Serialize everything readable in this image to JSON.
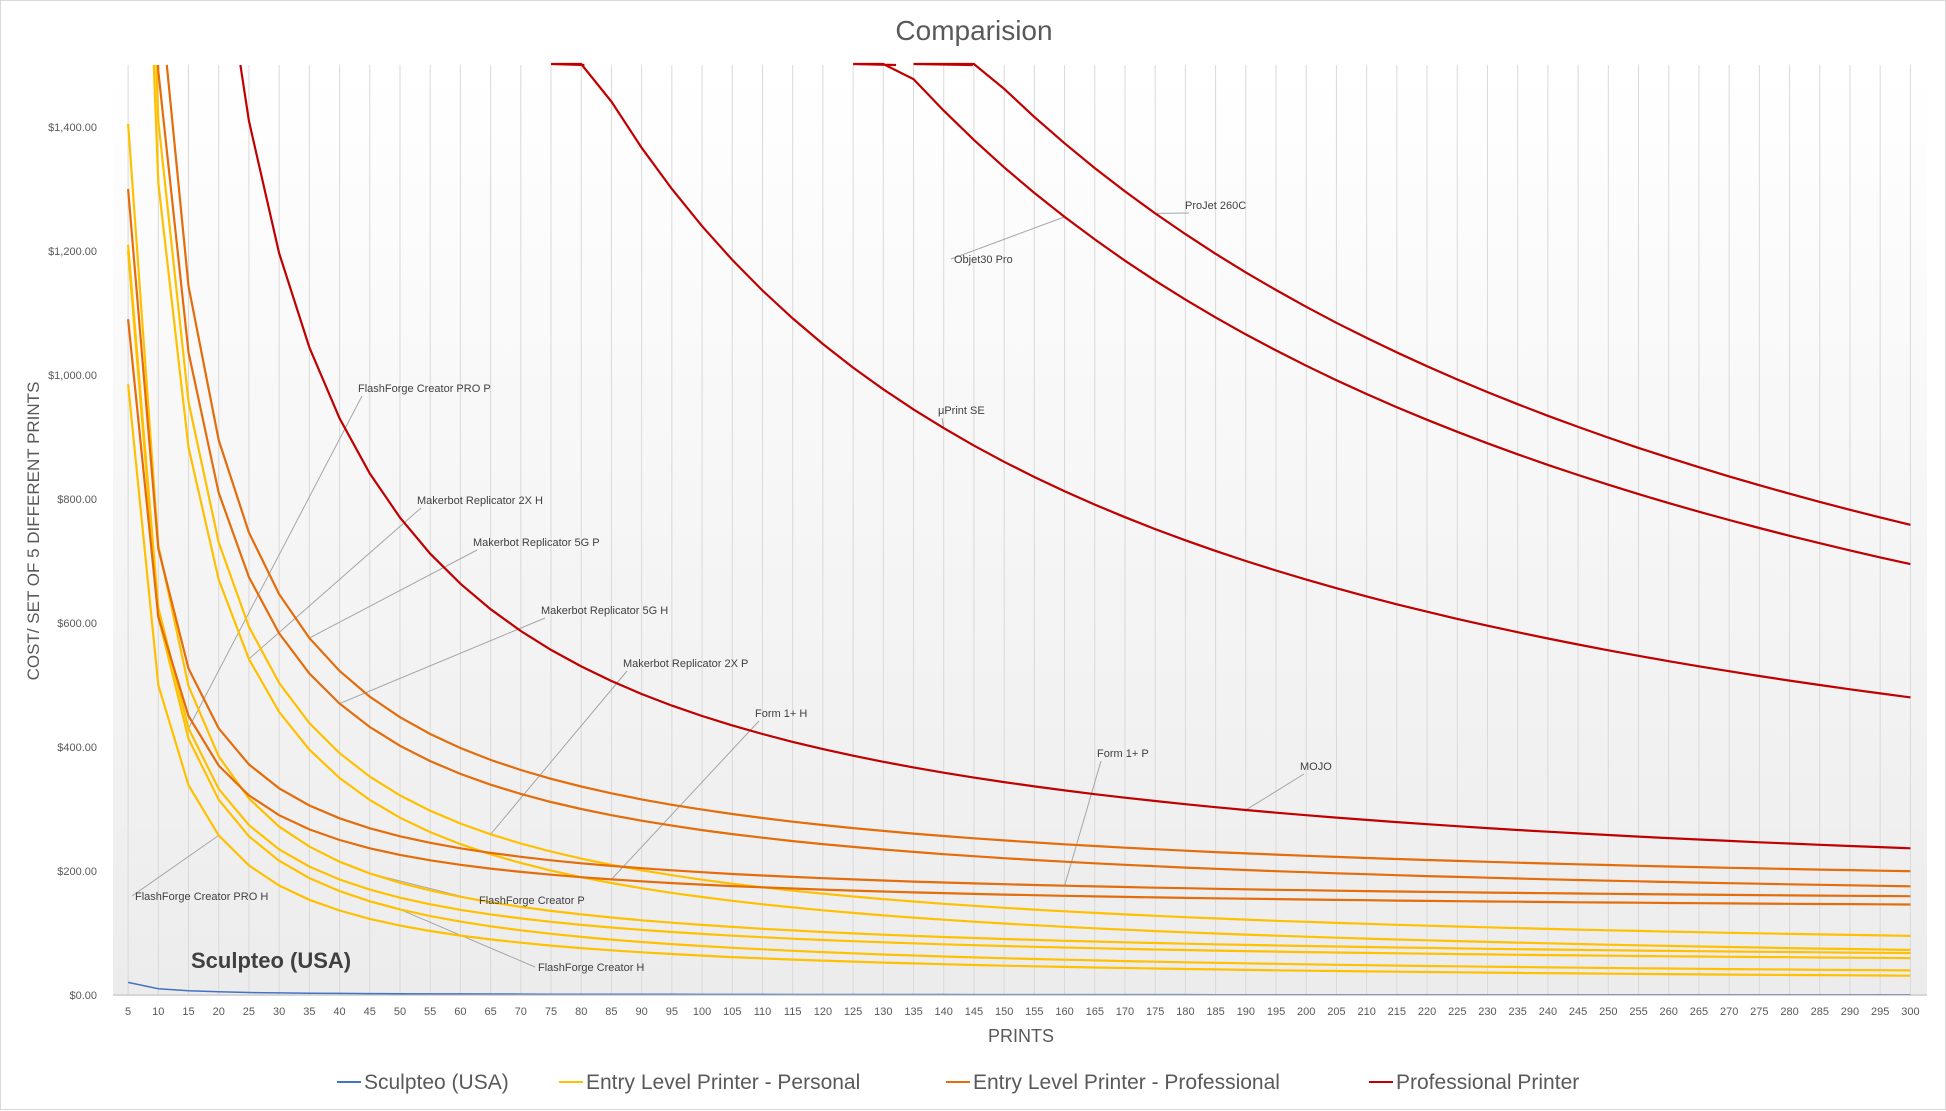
{
  "chart_data": {
    "type": "line",
    "title": "Comparision",
    "xlabel": "PRINTS",
    "ylabel": "COST/ SET OF 5 DIFFERENT PRINTS",
    "x": [
      5,
      10,
      15,
      20,
      25,
      30,
      35,
      40,
      45,
      50,
      55,
      60,
      65,
      70,
      75,
      80,
      85,
      90,
      95,
      100,
      105,
      110,
      115,
      120,
      125,
      130,
      135,
      140,
      145,
      150,
      155,
      160,
      165,
      170,
      175,
      180,
      185,
      190,
      195,
      200,
      205,
      210,
      215,
      220,
      225,
      230,
      235,
      240,
      245,
      250,
      255,
      260,
      265,
      270,
      275,
      280,
      285,
      290,
      295,
      300
    ],
    "ylim": [
      0,
      1500
    ],
    "yticks": [
      0,
      200,
      400,
      600,
      800,
      1000,
      1200,
      1400
    ],
    "ytick_labels": [
      "$0.00",
      "$200.00",
      "$400.00",
      "$600.00",
      "$800.00",
      "$1,000.00",
      "$1,200.00",
      "$1,400.00"
    ],
    "grid": "vertical",
    "legend_position": "bottom",
    "legend": [
      {
        "label": "Sculpteo (USA)",
        "color": "#4472c4"
      },
      {
        "label": "Entry Level Printer - Personal",
        "color": "#ffc000"
      },
      {
        "label": "Entry Level Printer - Professional",
        "color": "#e46c0a"
      },
      {
        "label": "Professional Printer",
        "color": "#c00000"
      }
    ],
    "series": [
      {
        "name": "Sculpteo (USA)",
        "group": "Sculpteo (USA)",
        "color": "#4472c4",
        "fixed": 102,
        "perUnit": 0
      },
      {
        "name": "FlashForge Creator PRO H",
        "group": "Entry Level Printer - Personal",
        "color": "#ffc000",
        "fixed": 4850,
        "perUnit": 15
      },
      {
        "name": "FlashForge Creator H",
        "group": "Entry Level Printer - Personal",
        "color": "#ffc000",
        "fixed": 5900,
        "perUnit": 20
      },
      {
        "name": "FlashForge Creator PRO P",
        "group": "Entry Level Printer - Personal",
        "color": "#ffc000",
        "fixed": 5850,
        "perUnit": 40
      },
      {
        "name": "FlashForge Creator P",
        "group": "Entry Level Printer - Personal",
        "color": "#ffc000",
        "fixed": 6800,
        "perUnit": 45
      },
      {
        "name": "Makerbot Replicator 2X H",
        "group": "Entry Level Printer - Personal",
        "color": "#ffc000",
        "fixed": 12800,
        "perUnit": 30
      },
      {
        "name": "Makerbot Replicator 2X P",
        "group": "Entry Level Printer - Personal",
        "color": "#ffc000",
        "fixed": 13600,
        "perUnit": 50
      },
      {
        "name": "Form 1+ H",
        "group": "Entry Level Printer - Professional",
        "color": "#e46c0a",
        "fixed": 4800,
        "perUnit": 130
      },
      {
        "name": "Form 1+ P",
        "group": "Entry Level Printer - Professional",
        "color": "#e46c0a",
        "fixed": 5800,
        "perUnit": 140
      },
      {
        "name": "Makerbot Replicator 5G H",
        "group": "Entry Level Printer - Professional",
        "color": "#e46c0a",
        "fixed": 13600,
        "perUnit": 130
      },
      {
        "name": "Makerbot Replicator 5G P",
        "group": "Entry Level Printer - Professional",
        "color": "#e46c0a",
        "fixed": 14900,
        "perUnit": 150
      },
      {
        "name": "MOJO",
        "group": "Professional Printer",
        "color": "#c00000",
        "fixed": 32000,
        "perUnit": 130
      },
      {
        "name": "μPrint SE",
        "group": "Professional Printer",
        "color": "#c00000",
        "fixed": 114000,
        "perUnit": 100
      },
      {
        "name": "Objet30 Pro",
        "group": "Professional Printer",
        "color": "#c00000",
        "fixed": 192000,
        "perUnit": 55
      },
      {
        "name": "ProJet 260C",
        "group": "Professional Printer",
        "color": "#c00000",
        "fixed": 211000,
        "perUnit": 55
      }
    ],
    "annotations": [
      {
        "text": "Sculpteo (USA)",
        "series": "Sculpteo (USA)",
        "large": true
      },
      {
        "text": "FlashForge Creator PRO P",
        "series": "FlashForge Creator PRO P"
      },
      {
        "text": "Makerbot Replicator 2X H",
        "series": "Makerbot Replicator 2X H"
      },
      {
        "text": "Makerbot Replicator 5G P",
        "series": "Makerbot Replicator 5G P"
      },
      {
        "text": "Makerbot Replicator 5G H",
        "series": "Makerbot Replicator 5G H"
      },
      {
        "text": "Makerbot Replicator 2X P",
        "series": "Makerbot Replicator 2X P"
      },
      {
        "text": "Form 1+ H",
        "series": "Form 1+ H"
      },
      {
        "text": "Form 1+ P",
        "series": "Form 1+ P"
      },
      {
        "text": "MOJO",
        "series": "MOJO"
      },
      {
        "text": "μPrint SE",
        "series": "μPrint SE"
      },
      {
        "text": "Objet30 Pro",
        "series": "Objet30 Pro"
      },
      {
        "text": "ProJet 260C",
        "series": "ProJet 260C"
      },
      {
        "text": "FlashForge Creator PRO H",
        "series": "FlashForge Creator PRO H"
      },
      {
        "text": "FlashForge Creator P",
        "series": "FlashForge Creator P"
      },
      {
        "text": "FlashForge Creator H",
        "series": "FlashForge Creator H"
      }
    ]
  }
}
